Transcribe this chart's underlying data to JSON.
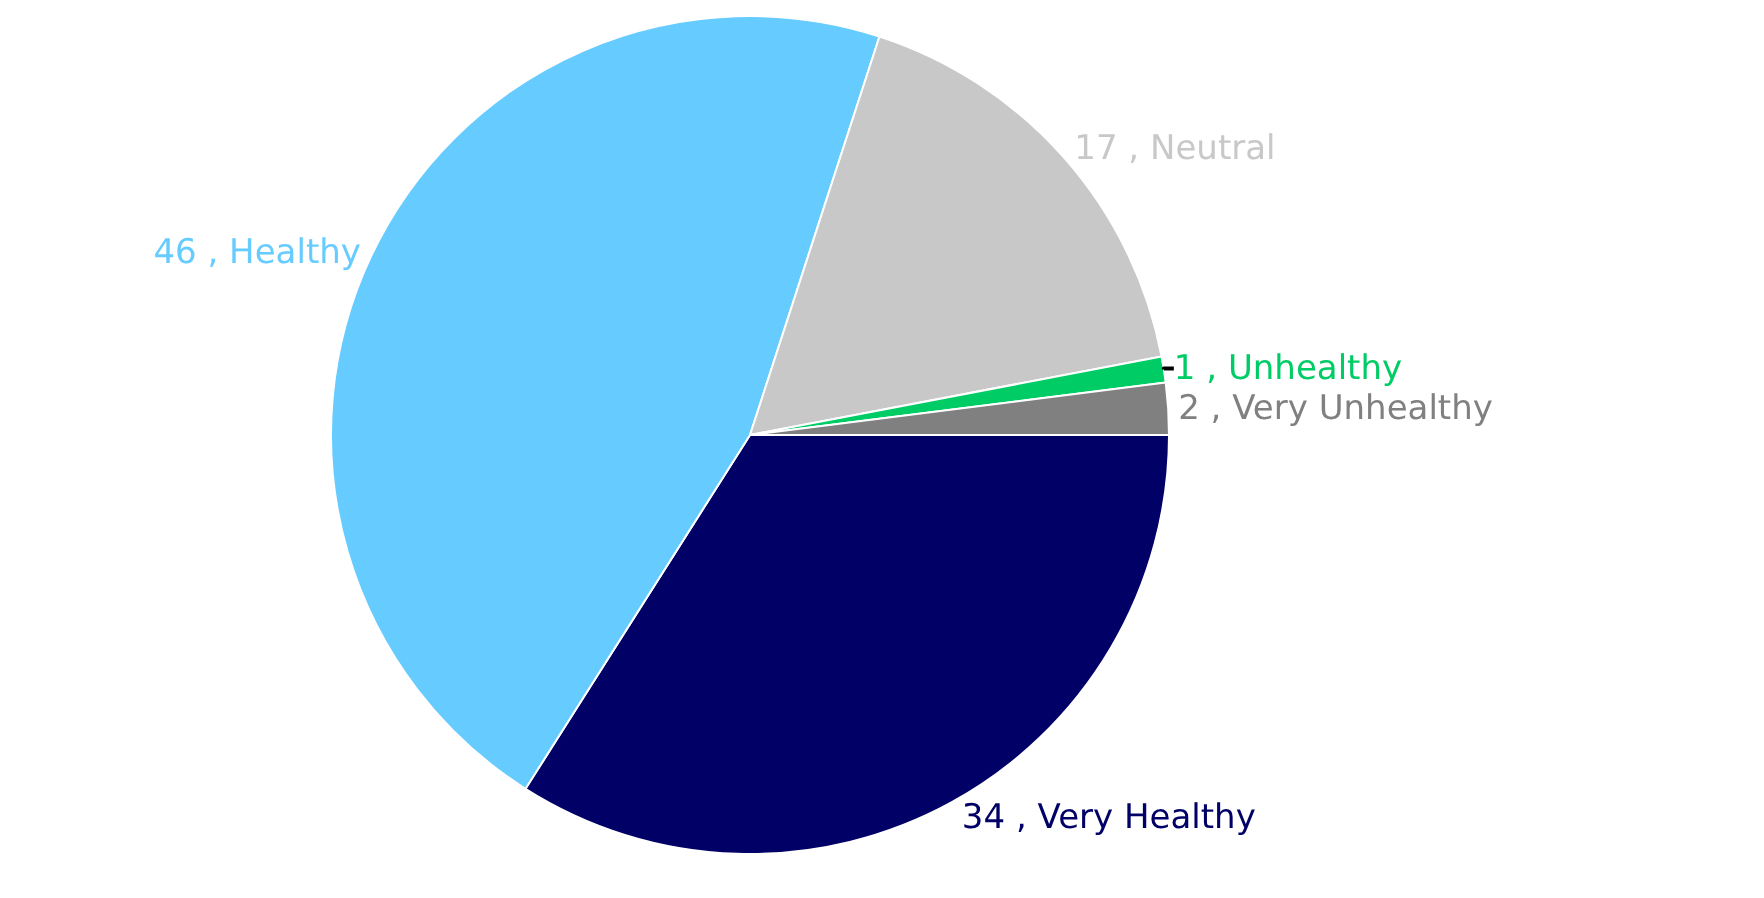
{
  "chart_data": {
    "type": "pie",
    "categories": [
      "Very Healthy",
      "Healthy",
      "Neutral",
      "Unhealthy",
      "Very Unhealthy"
    ],
    "values": [
      34,
      46,
      17,
      1,
      2
    ],
    "colors": [
      "#000066",
      "#66ccff",
      "#c8c8c8",
      "#00cc66",
      "#808080"
    ],
    "value_labels": [
      "34 ,",
      "46 ,",
      "17 ,",
      "1 ,",
      "2 ,"
    ],
    "legend": false
  }
}
